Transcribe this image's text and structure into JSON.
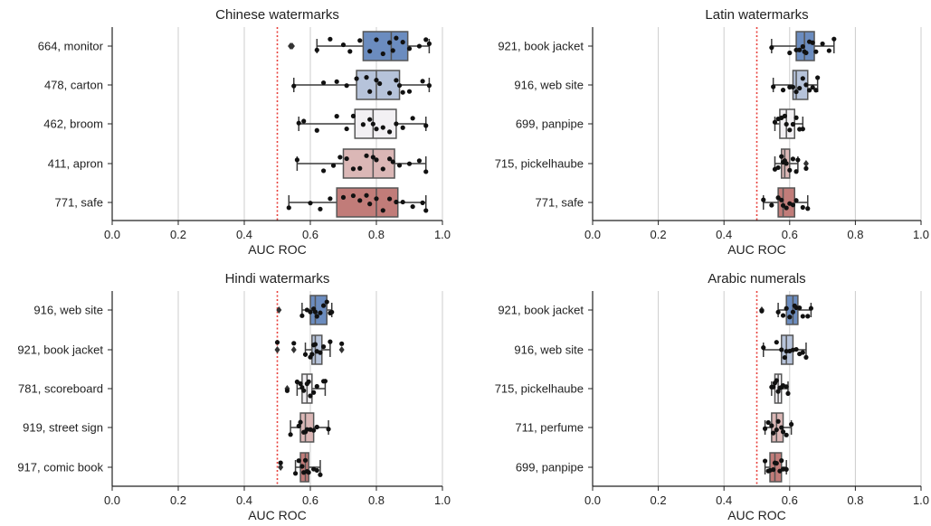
{
  "chart_data": [
    {
      "type": "box",
      "title": "Chinese watermarks",
      "xlabel": "AUC ROC",
      "xlim": [
        0,
        1
      ],
      "xticks": [
        "0.0",
        "0.2",
        "0.4",
        "0.6",
        "0.8",
        "1.0"
      ],
      "chance_line": 0.5,
      "series": [
        {
          "label": "664, monitor",
          "color": "#6b8cbf",
          "whisker": [
            0.62,
            0.96
          ],
          "box": [
            0.76,
            0.845,
            0.895
          ],
          "outliers": [
            0.54,
            0.545
          ],
          "points": [
            0.62,
            0.66,
            0.7,
            0.72,
            0.75,
            0.78,
            0.8,
            0.82,
            0.84,
            0.85,
            0.86,
            0.88,
            0.9,
            0.93,
            0.95,
            0.96
          ]
        },
        {
          "label": "478, carton",
          "color": "#b6c3da",
          "whisker": [
            0.55,
            0.96
          ],
          "box": [
            0.74,
            0.8,
            0.87
          ],
          "outliers": [],
          "points": [
            0.55,
            0.64,
            0.68,
            0.71,
            0.74,
            0.77,
            0.78,
            0.8,
            0.81,
            0.84,
            0.86,
            0.87,
            0.88,
            0.9,
            0.94,
            0.96
          ]
        },
        {
          "label": "462, broom",
          "color": "#f2f0f3",
          "whisker": [
            0.565,
            0.95
          ],
          "box": [
            0.735,
            0.79,
            0.86
          ],
          "outliers": [],
          "points": [
            0.565,
            0.58,
            0.62,
            0.68,
            0.71,
            0.73,
            0.76,
            0.78,
            0.79,
            0.8,
            0.82,
            0.84,
            0.86,
            0.88,
            0.91,
            0.95
          ]
        },
        {
          "label": "411, apron",
          "color": "#dbb7b6",
          "whisker": [
            0.56,
            0.95
          ],
          "box": [
            0.7,
            0.79,
            0.855
          ],
          "outliers": [],
          "points": [
            0.56,
            0.64,
            0.67,
            0.69,
            0.71,
            0.73,
            0.75,
            0.77,
            0.79,
            0.8,
            0.82,
            0.84,
            0.85,
            0.87,
            0.9,
            0.93,
            0.95
          ]
        },
        {
          "label": "771, safe",
          "color": "#c17c79",
          "whisker": [
            0.535,
            0.95
          ],
          "box": [
            0.68,
            0.8,
            0.865
          ],
          "outliers": [],
          "points": [
            0.535,
            0.6,
            0.63,
            0.66,
            0.7,
            0.73,
            0.75,
            0.77,
            0.78,
            0.8,
            0.82,
            0.84,
            0.86,
            0.88,
            0.91,
            0.94,
            0.95
          ]
        }
      ]
    },
    {
      "type": "box",
      "title": "Latin watermarks",
      "xlabel": "AUC ROC",
      "xlim": [
        0,
        1
      ],
      "xticks": [
        "0.0",
        "0.2",
        "0.4",
        "0.6",
        "0.8",
        "1.0"
      ],
      "chance_line": 0.5,
      "series": [
        {
          "label": "921, book jacket",
          "color": "#6b8cbf",
          "whisker": [
            0.545,
            0.735
          ],
          "box": [
            0.62,
            0.645,
            0.675
          ],
          "outliers": [],
          "points": [
            0.545,
            0.6,
            0.62,
            0.63,
            0.64,
            0.645,
            0.65,
            0.66,
            0.67,
            0.68,
            0.7,
            0.72,
            0.735
          ]
        },
        {
          "label": "916, web site",
          "color": "#b6c3da",
          "whisker": [
            0.55,
            0.685
          ],
          "box": [
            0.61,
            0.62,
            0.655
          ],
          "outliers": [],
          "points": [
            0.55,
            0.58,
            0.6,
            0.61,
            0.62,
            0.63,
            0.64,
            0.65,
            0.66,
            0.67,
            0.68,
            0.685
          ]
        },
        {
          "label": "699, panpipe",
          "color": "#f2f0f3",
          "whisker": [
            0.555,
            0.64
          ],
          "box": [
            0.57,
            0.59,
            0.615
          ],
          "outliers": [],
          "points": [
            0.555,
            0.565,
            0.575,
            0.585,
            0.59,
            0.6,
            0.61,
            0.62,
            0.63,
            0.64
          ]
        },
        {
          "label": "715, pickelhaube",
          "color": "#dbb7b6",
          "whisker": [
            0.555,
            0.625
          ],
          "box": [
            0.575,
            0.585,
            0.6
          ],
          "outliers": [
            0.65
          ],
          "points": [
            0.555,
            0.565,
            0.575,
            0.58,
            0.585,
            0.59,
            0.6,
            0.61,
            0.62,
            0.625,
            0.65
          ]
        },
        {
          "label": "771, safe",
          "color": "#c17c79",
          "whisker": [
            0.52,
            0.655
          ],
          "box": [
            0.565,
            0.58,
            0.615
          ],
          "outliers": [],
          "points": [
            0.52,
            0.545,
            0.565,
            0.575,
            0.58,
            0.59,
            0.6,
            0.61,
            0.62,
            0.64,
            0.655
          ]
        }
      ]
    },
    {
      "type": "box",
      "title": "Hindi watermarks",
      "xlabel": "AUC ROC",
      "xlim": [
        0,
        1
      ],
      "xticks": [
        "0.0",
        "0.2",
        "0.4",
        "0.6",
        "0.8",
        "1.0"
      ],
      "chance_line": 0.5,
      "series": [
        {
          "label": "916, web site",
          "color": "#6b8cbf",
          "whisker": [
            0.575,
            0.665
          ],
          "box": [
            0.6,
            0.615,
            0.65
          ],
          "outliers": [
            0.505
          ],
          "points": [
            0.575,
            0.59,
            0.6,
            0.61,
            0.615,
            0.62,
            0.63,
            0.64,
            0.65,
            0.66,
            0.665
          ]
        },
        {
          "label": "921, book jacket",
          "color": "#b6c3da",
          "whisker": [
            0.585,
            0.66
          ],
          "box": [
            0.605,
            0.615,
            0.635
          ],
          "outliers": [
            0.5,
            0.55,
            0.695
          ],
          "points": [
            0.5,
            0.55,
            0.585,
            0.6,
            0.605,
            0.61,
            0.615,
            0.62,
            0.63,
            0.64,
            0.66,
            0.695
          ]
        },
        {
          "label": "781, scoreboard",
          "color": "#f2f0f3",
          "whisker": [
            0.56,
            0.645
          ],
          "box": [
            0.575,
            0.59,
            0.605
          ],
          "outliers": [
            0.53
          ],
          "points": [
            0.53,
            0.56,
            0.57,
            0.575,
            0.58,
            0.59,
            0.595,
            0.6,
            0.61,
            0.62,
            0.64,
            0.645
          ]
        },
        {
          "label": "919, street sign",
          "color": "#dbb7b6",
          "whisker": [
            0.54,
            0.655
          ],
          "box": [
            0.57,
            0.585,
            0.61
          ],
          "outliers": [],
          "points": [
            0.54,
            0.565,
            0.57,
            0.58,
            0.585,
            0.59,
            0.6,
            0.61,
            0.62,
            0.655
          ]
        },
        {
          "label": "917, comic book",
          "color": "#c17c79",
          "whisker": [
            0.555,
            0.63
          ],
          "box": [
            0.57,
            0.585,
            0.595
          ],
          "outliers": [
            0.51
          ],
          "points": [
            0.51,
            0.555,
            0.565,
            0.575,
            0.58,
            0.585,
            0.59,
            0.595,
            0.61,
            0.62,
            0.63
          ]
        }
      ]
    },
    {
      "type": "box",
      "title": "Arabic numerals",
      "xlabel": "AUC ROC",
      "xlim": [
        0,
        1
      ],
      "xticks": [
        "0.0",
        "0.2",
        "0.4",
        "0.6",
        "0.8",
        "1.0"
      ],
      "chance_line": 0.5,
      "series": [
        {
          "label": "921, book jacket",
          "color": "#6b8cbf",
          "whisker": [
            0.565,
            0.665
          ],
          "box": [
            0.59,
            0.61,
            0.625
          ],
          "outliers": [
            0.515
          ],
          "points": [
            0.515,
            0.565,
            0.58,
            0.59,
            0.6,
            0.61,
            0.615,
            0.62,
            0.63,
            0.64,
            0.655,
            0.665
          ]
        },
        {
          "label": "916, web site",
          "color": "#b6c3da",
          "whisker": [
            0.52,
            0.65
          ],
          "box": [
            0.575,
            0.59,
            0.61
          ],
          "outliers": [],
          "points": [
            0.52,
            0.56,
            0.575,
            0.585,
            0.59,
            0.6,
            0.61,
            0.62,
            0.63,
            0.64,
            0.65
          ]
        },
        {
          "label": "715, pickelhaube",
          "color": "#f2f0f3",
          "whisker": [
            0.545,
            0.595
          ],
          "box": [
            0.555,
            0.565,
            0.575
          ],
          "outliers": [],
          "points": [
            0.545,
            0.55,
            0.555,
            0.56,
            0.565,
            0.57,
            0.575,
            0.58,
            0.59,
            0.595
          ]
        },
        {
          "label": "711, perfume",
          "color": "#dbb7b6",
          "whisker": [
            0.525,
            0.605
          ],
          "box": [
            0.545,
            0.56,
            0.58
          ],
          "outliers": [],
          "points": [
            0.525,
            0.535,
            0.545,
            0.55,
            0.56,
            0.565,
            0.575,
            0.58,
            0.59,
            0.605
          ]
        },
        {
          "label": "699, panpipe",
          "color": "#c17c79",
          "whisker": [
            0.525,
            0.59
          ],
          "box": [
            0.54,
            0.555,
            0.575
          ],
          "outliers": [],
          "points": [
            0.525,
            0.535,
            0.54,
            0.55,
            0.555,
            0.56,
            0.57,
            0.575,
            0.58,
            0.59
          ]
        }
      ]
    }
  ]
}
